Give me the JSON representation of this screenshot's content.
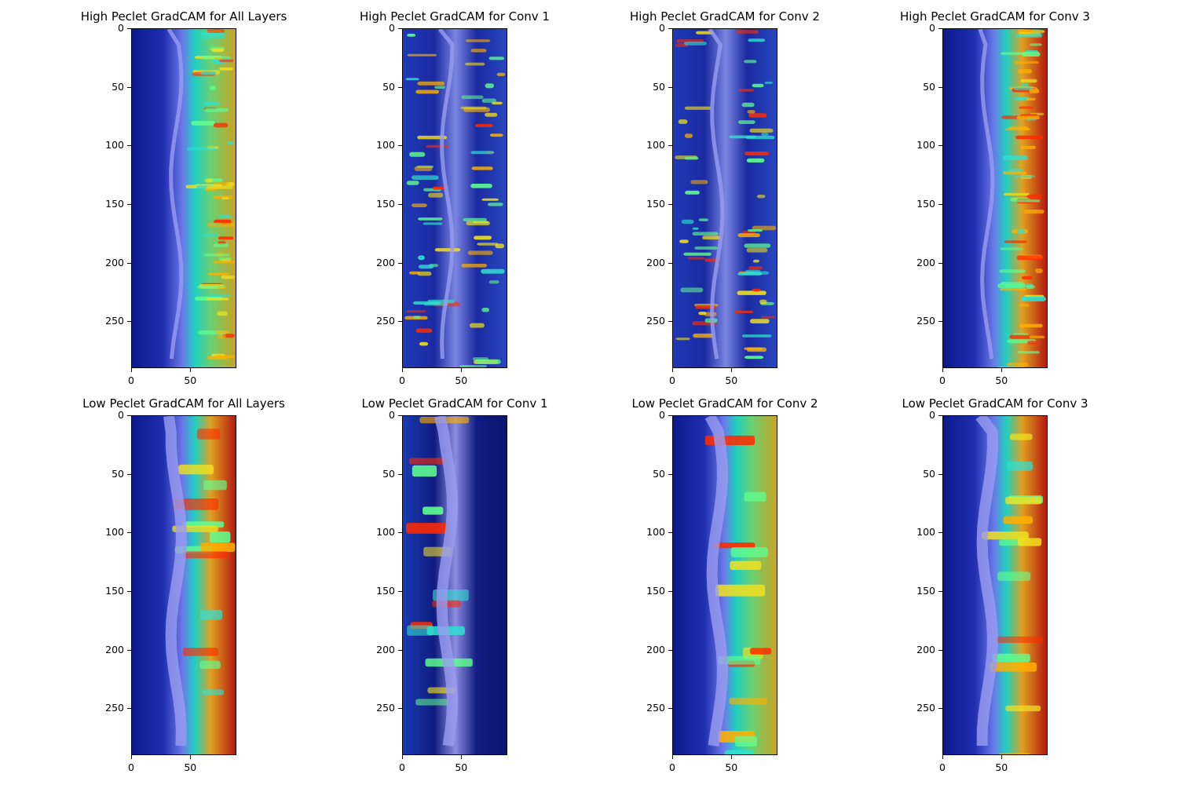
{
  "colormap": "jet",
  "chart_data": [
    {
      "type": "heatmap",
      "id": "hp-all",
      "title": "High Peclet GradCAM for All Layers",
      "peclet": "high",
      "layer": "all",
      "xlim": [
        0,
        89
      ],
      "ylim": [
        290,
        0
      ],
      "x_ticks": [
        0,
        50
      ],
      "y_ticks": [
        0,
        50,
        100,
        150,
        200,
        250
      ],
      "hot_side": "right",
      "intensity": 0.6
    },
    {
      "type": "heatmap",
      "id": "hp-c1",
      "title": "High Peclet GradCAM for Conv 1",
      "peclet": "high",
      "layer": "conv1",
      "xlim": [
        0,
        89
      ],
      "ylim": [
        290,
        0
      ],
      "x_ticks": [
        0,
        50
      ],
      "y_ticks": [
        0,
        50,
        100,
        150,
        200,
        250
      ],
      "hot_side": "both",
      "intensity": 0.55
    },
    {
      "type": "heatmap",
      "id": "hp-c2",
      "title": "High Peclet GradCAM for Conv 2",
      "peclet": "high",
      "layer": "conv2",
      "xlim": [
        0,
        89
      ],
      "ylim": [
        290,
        0
      ],
      "x_ticks": [
        0,
        50
      ],
      "y_ticks": [
        0,
        50,
        100,
        150,
        200,
        250
      ],
      "hot_side": "both",
      "intensity": 0.5
    },
    {
      "type": "heatmap",
      "id": "hp-c3",
      "title": "High Peclet GradCAM for Conv 3",
      "peclet": "high",
      "layer": "conv3",
      "xlim": [
        0,
        89
      ],
      "ylim": [
        290,
        0
      ],
      "x_ticks": [
        0,
        50
      ],
      "y_ticks": [
        0,
        50,
        100,
        150,
        200,
        250
      ],
      "hot_side": "right",
      "intensity": 0.85
    },
    {
      "type": "heatmap",
      "id": "lp-all",
      "title": "Low Peclet GradCAM for All Layers",
      "peclet": "low",
      "layer": "all",
      "xlim": [
        0,
        89
      ],
      "ylim": [
        290,
        0
      ],
      "x_ticks": [
        0,
        50
      ],
      "y_ticks": [
        0,
        50,
        100,
        150,
        200,
        250
      ],
      "hot_side": "right",
      "intensity": 0.75
    },
    {
      "type": "heatmap",
      "id": "lp-c1",
      "title": "Low Peclet GradCAM for Conv 1",
      "peclet": "low",
      "layer": "conv1",
      "xlim": [
        0,
        89
      ],
      "ylim": [
        290,
        0
      ],
      "x_ticks": [
        0,
        50
      ],
      "y_ticks": [
        0,
        50,
        100,
        150,
        200,
        250
      ],
      "hot_side": "left",
      "intensity": 0.7
    },
    {
      "type": "heatmap",
      "id": "lp-c2",
      "title": "Low Peclet GradCAM for Conv 2",
      "peclet": "low",
      "layer": "conv2",
      "xlim": [
        0,
        89
      ],
      "ylim": [
        290,
        0
      ],
      "x_ticks": [
        0,
        50
      ],
      "y_ticks": [
        0,
        50,
        100,
        150,
        200,
        250
      ],
      "hot_side": "right",
      "intensity": 0.7
    },
    {
      "type": "heatmap",
      "id": "lp-c3",
      "title": "Low Peclet GradCAM for Conv 3",
      "peclet": "low",
      "layer": "conv3",
      "xlim": [
        0,
        89
      ],
      "ylim": [
        290,
        0
      ],
      "x_ticks": [
        0,
        50
      ],
      "y_ticks": [
        0,
        50,
        100,
        150,
        200,
        250
      ],
      "hot_side": "right",
      "intensity": 0.9
    }
  ]
}
